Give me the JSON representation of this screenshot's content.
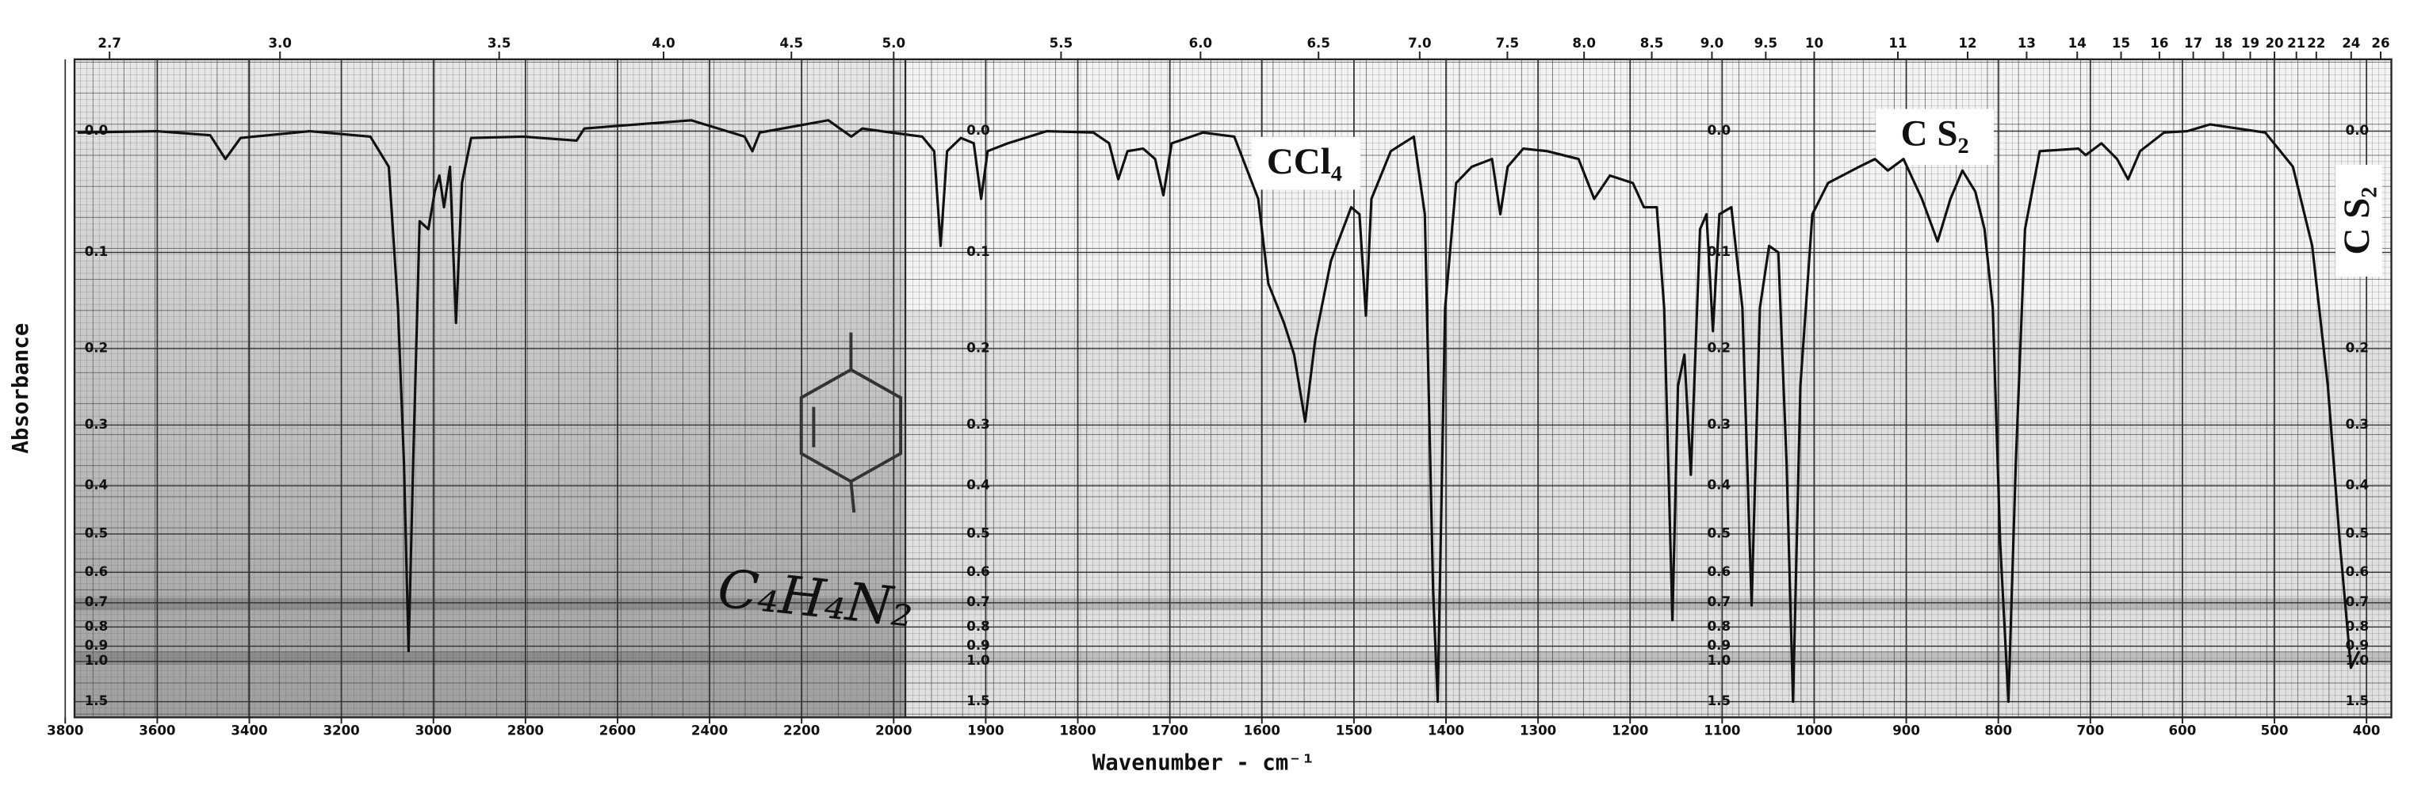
{
  "chart_data": {
    "type": "line",
    "x_label": "Wavenumber - cm⁻¹",
    "y_label": "Absorbance",
    "annotations": [
      {
        "text": "CCl₄"
      },
      {
        "text": "C S₂"
      },
      {
        "text": "C S₂"
      },
      {
        "text": "C₄H₄N₂"
      }
    ],
    "color": "#111111",
    "grid": true,
    "xlim": [
      3800,
      400
    ],
    "x_scale_change": 2000,
    "x_scale_ratio": 2,
    "xticks": [
      3800,
      3600,
      3400,
      3200,
      3000,
      2800,
      2600,
      2400,
      2200,
      2000,
      1900,
      1800,
      1700,
      1600,
      1500,
      1400,
      1300,
      1200,
      1100,
      1000,
      900,
      800,
      700,
      600,
      500,
      400
    ],
    "x2": {
      "scale": "reciprocal",
      "factor": 10000,
      "ticks": [
        2.7,
        {
          "value": 3,
          "label": "3.0"
        },
        3.5,
        {
          "value": 4,
          "label": "4.0"
        },
        4.5,
        {
          "value": 5,
          "label": "5.0"
        },
        5.5,
        {
          "value": 6,
          "label": "6.0"
        },
        6.5,
        {
          "value": 7,
          "label": "7.0"
        },
        7.5,
        {
          "value": 8,
          "label": "8.0"
        },
        8.5,
        {
          "value": 9,
          "label": "9.0"
        },
        9.5,
        10,
        11,
        12,
        13,
        14,
        15,
        16,
        17,
        18,
        19,
        20,
        21,
        22,
        24,
        26
      ]
    },
    "ylim": [
      -0.05,
      2.3
    ],
    "y_scale": "transmittance",
    "yticks": [
      {
        "value": 0,
        "label": "0.0"
      },
      0.1,
      0.2,
      0.3,
      0.4,
      0.5,
      0.6,
      0.7,
      0.8,
      0.9,
      {
        "value": 1,
        "label": "1.0"
      },
      1.5
    ],
    "x": [
      3773,
      3601,
      3485,
      3452,
      3419,
      3269,
      3137,
      3097,
      3077,
      3064,
      3054,
      3044,
      3030,
      3011,
      2997,
      2987,
      2977,
      2964,
      2951,
      2938,
      2918,
      2805,
      2689,
      2672,
      2440,
      2324,
      2307,
      2291,
      2142,
      2092,
      2068,
      2005,
      1969,
      1956,
      1949,
      1942,
      1927,
      1913,
      1905,
      1898,
      1876,
      1834,
      1783,
      1766,
      1756,
      1746,
      1729,
      1716,
      1707,
      1698,
      1664,
      1630,
      1604,
      1593,
      1576,
      1565,
      1553,
      1542,
      1525,
      1503,
      1494,
      1487,
      1481,
      1460,
      1435,
      1423,
      1414,
      1409,
      1401,
      1389,
      1372,
      1350,
      1341,
      1333,
      1316,
      1290,
      1256,
      1239,
      1222,
      1197,
      1185,
      1171,
      1163,
      1154,
      1148,
      1141,
      1134,
      1124,
      1117,
      1110,
      1103,
      1090,
      1078,
      1068,
      1059,
      1049,
      1039,
      1030,
      1023,
      1015,
      1002,
      985,
      951,
      934,
      920,
      903,
      883,
      866,
      852,
      839,
      825,
      815,
      806,
      798,
      789,
      781,
      771,
      755,
      713,
      705,
      688,
      671,
      659,
      646,
      620,
      595,
      570,
      510,
      480,
      459,
      442,
      429,
      417,
      408
    ],
    "values": [
      0.001,
      0,
      0.003,
      0.021,
      0.005,
      0,
      0.004,
      0.027,
      0.155,
      0.36,
      0.93,
      0.36,
      0.072,
      0.079,
      0.047,
      0.034,
      0.06,
      0.027,
      0.171,
      0.04,
      0.005,
      0.004,
      0.007,
      -0.002,
      -0.008,
      0.004,
      0.015,
      0.001,
      -0.008,
      0.004,
      -0.002,
      0.001,
      0.004,
      0.015,
      0.094,
      0.015,
      0.005,
      0.009,
      0.053,
      0.015,
      0.009,
      0,
      0.001,
      0.009,
      0.037,
      0.015,
      0.013,
      0.021,
      0.05,
      0.009,
      0.001,
      0.004,
      0.053,
      0.13,
      0.171,
      0.207,
      0.295,
      0.189,
      0.108,
      0.06,
      0.066,
      0.163,
      0.053,
      0.015,
      0.004,
      0.066,
      0.66,
      1.5,
      0.155,
      0.04,
      0.027,
      0.021,
      0.066,
      0.027,
      0.013,
      0.015,
      0.021,
      0.053,
      0.034,
      0.04,
      0.06,
      0.06,
      0.155,
      0.77,
      0.246,
      0.207,
      0.38,
      0.079,
      0.066,
      0.18,
      0.066,
      0.06,
      0.155,
      0.71,
      0.155,
      0.094,
      0.1,
      0.36,
      1.5,
      0.246,
      0.066,
      0.04,
      0.027,
      0.021,
      0.03,
      0.021,
      0.053,
      0.09,
      0.053,
      0.03,
      0.047,
      0.079,
      0.155,
      0.52,
      1.5,
      0.36,
      0.079,
      0.015,
      0.013,
      0.018,
      0.009,
      0.021,
      0.037,
      0.015,
      0.001,
      0,
      -0.005,
      0.001,
      0.027,
      0.094,
      0.246,
      0.52,
      1.05,
      0.93
    ]
  }
}
